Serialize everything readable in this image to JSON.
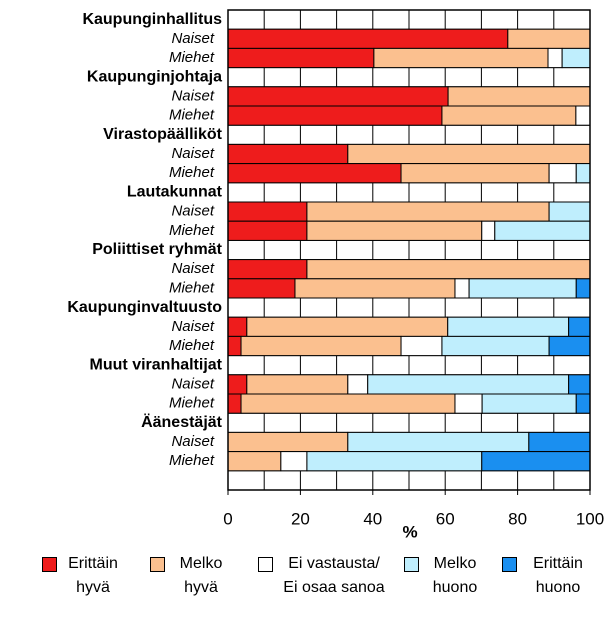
{
  "chart_data": {
    "type": "stacked-bar-horizontal",
    "groups": [
      "Kaupunginhallitus",
      "Kaupunginjohtaja",
      "Virastopäälliköt",
      "Lautakunnat",
      "Poliittiset ryhmät",
      "Kaupunginvaltuusto",
      "Muut viranhaltijat",
      "Äänestäjät"
    ],
    "categories": [
      "Naiset",
      "Miehet",
      "Naiset",
      "Miehet",
      "Naiset",
      "Miehet",
      "Naiset",
      "Miehet",
      "Naiset",
      "Miehet",
      "Naiset",
      "Miehet",
      "Naiset",
      "Miehet",
      "Naiset",
      "Miehet"
    ],
    "series": [
      {
        "name": "Erittäin hyvä",
        "color": "#ee1c1c",
        "values": [
          77.3,
          40.3,
          60.8,
          59.1,
          33.1,
          47.8,
          21.8,
          21.8,
          21.8,
          18.5,
          5.2,
          3.6,
          5.2,
          3.6,
          0,
          0
        ]
      },
      {
        "name": "Melko hyvä",
        "color": "#fbc08f",
        "values": [
          22.7,
          48.1,
          39.2,
          37.0,
          66.9,
          40.9,
          66.9,
          48.3,
          78.2,
          44.2,
          55.5,
          44.2,
          27.9,
          59.1,
          33.1,
          14.6
        ]
      },
      {
        "name": "Ei vastausta/ Ei osaa sanoa",
        "color": "#ffffff",
        "values": [
          0,
          3.9,
          0,
          3.9,
          0,
          7.5,
          0,
          3.6,
          0,
          3.9,
          0,
          11.3,
          5.5,
          7.5,
          0,
          7.2
        ]
      },
      {
        "name": "Melko huono",
        "color": "#bfeefd",
        "values": [
          0,
          7.7,
          0,
          0,
          0,
          3.8,
          11.3,
          26.3,
          0,
          29.6,
          33.4,
          29.6,
          55.5,
          26.0,
          50.0,
          48.3
        ]
      },
      {
        "name": "Erittäin huono",
        "color": "#1a8ff0",
        "values": [
          0,
          0,
          0,
          0,
          0,
          0,
          0,
          0,
          0,
          3.8,
          5.9,
          11.3,
          5.9,
          3.8,
          16.9,
          29.9
        ]
      }
    ],
    "xlabel": "%",
    "xlim": [
      0,
      100
    ],
    "xticks": [
      0,
      20,
      40,
      60,
      80,
      100
    ],
    "xgrid": [
      0,
      10,
      20,
      30,
      40,
      50,
      60,
      70,
      80,
      90,
      100
    ]
  }
}
